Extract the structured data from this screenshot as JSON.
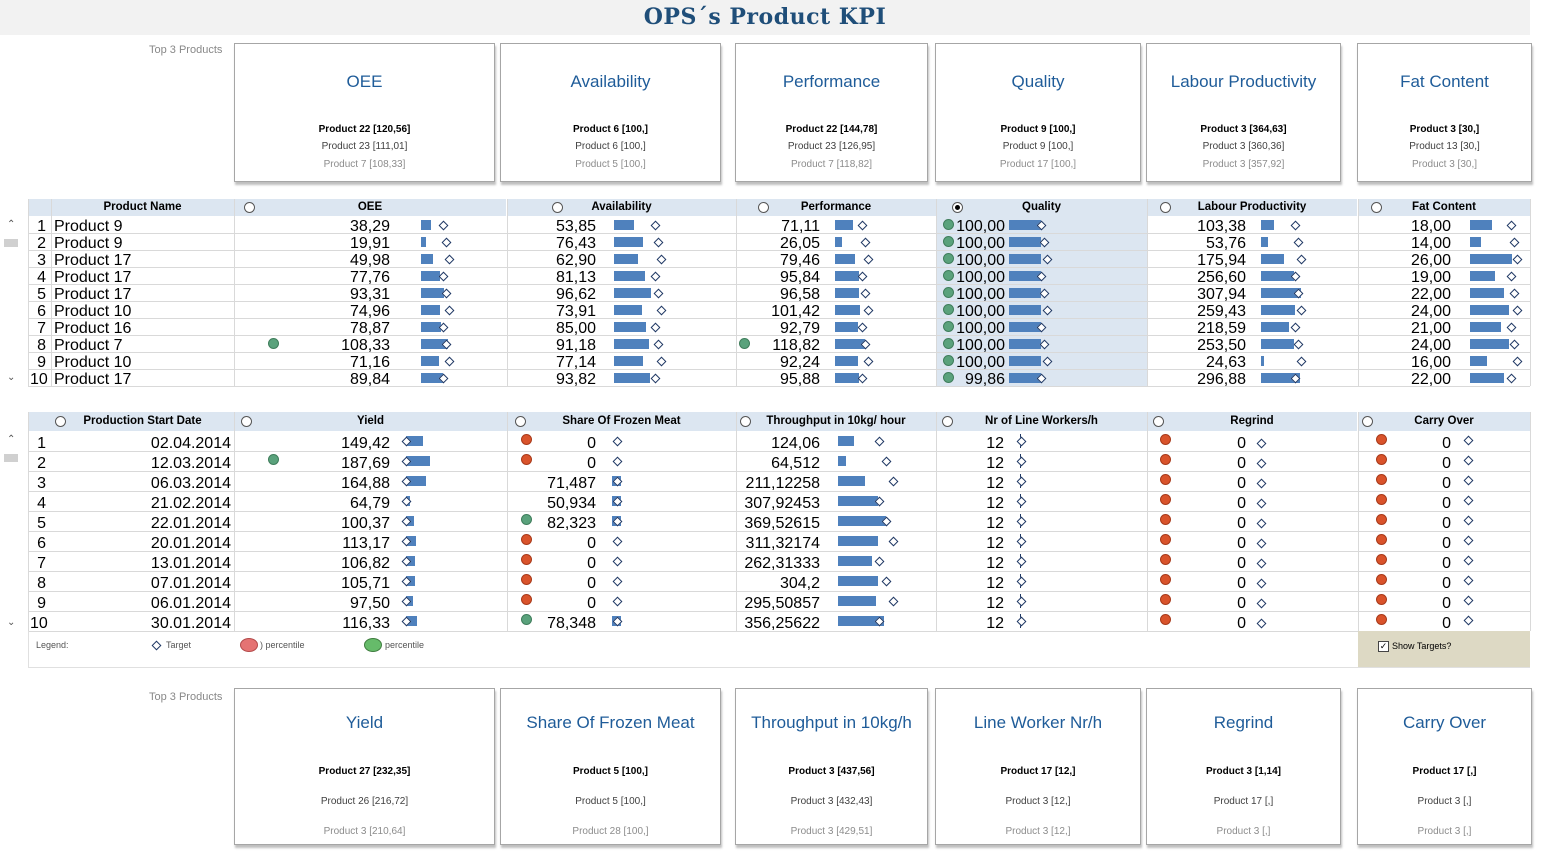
{
  "title": "OPS´s Product KPI",
  "top_label": "Top 3 Products",
  "top_cards": [
    {
      "title": "OEE",
      "lines": [
        "Product 22 [120,56]",
        "Product 23 [111,01]",
        "Product 7 [108,33]"
      ]
    },
    {
      "title": "Availability",
      "lines": [
        "Product 6 [100,]",
        "Product 6 [100,]",
        "Product 5 [100,]"
      ]
    },
    {
      "title": "Performance",
      "lines": [
        "Product 22 [144,78]",
        "Product 23 [126,95]",
        "Product 7 [118,82]"
      ]
    },
    {
      "title": "Quality",
      "lines": [
        "Product 9 [100,]",
        "Product 9 [100,]",
        "Product 17 [100,]"
      ]
    },
    {
      "title": "Labour Productivity",
      "lines": [
        "Product 3 [364,63]",
        "Product 3 [360,36]",
        "Product 3 [357,92]"
      ]
    },
    {
      "title": "Fat Content",
      "lines": [
        "Product 3 [30,]",
        "Product 13 [30,]",
        "Product 3 [30,]"
      ]
    }
  ],
  "table1": {
    "headers": [
      "Product Name",
      "OEE",
      "Availability",
      "Performance",
      "Quality",
      "Labour Productivity",
      "Fat Content"
    ],
    "rows": [
      {
        "n": "1",
        "name": "Product 9",
        "oee": "38,29",
        "av": "53,85",
        "perf": "71,11",
        "q": "100,00",
        "lp": "103,38",
        "fat": "18,00"
      },
      {
        "n": "2",
        "name": "Product 9",
        "oee": "19,91",
        "av": "76,43",
        "perf": "26,05",
        "q": "100,00",
        "lp": "53,76",
        "fat": "14,00"
      },
      {
        "n": "3",
        "name": "Product 17",
        "oee": "49,98",
        "av": "62,90",
        "perf": "79,46",
        "q": "100,00",
        "lp": "175,94",
        "fat": "26,00"
      },
      {
        "n": "4",
        "name": "Product 17",
        "oee": "77,76",
        "av": "81,13",
        "perf": "95,84",
        "q": "100,00",
        "lp": "256,60",
        "fat": "19,00"
      },
      {
        "n": "5",
        "name": "Product 17",
        "oee": "93,31",
        "av": "96,62",
        "perf": "96,58",
        "q": "100,00",
        "lp": "307,94",
        "fat": "22,00"
      },
      {
        "n": "6",
        "name": "Product 10",
        "oee": "74,96",
        "av": "73,91",
        "perf": "101,42",
        "q": "100,00",
        "lp": "259,43",
        "fat": "24,00"
      },
      {
        "n": "7",
        "name": "Product 16",
        "oee": "78,87",
        "av": "85,00",
        "perf": "92,79",
        "q": "100,00",
        "lp": "218,59",
        "fat": "21,00"
      },
      {
        "n": "8",
        "name": "Product 7",
        "oee": "108,33",
        "av": "91,18",
        "perf": "118,82",
        "q": "100,00",
        "lp": "253,50",
        "fat": "24,00"
      },
      {
        "n": "9",
        "name": "Product 10",
        "oee": "71,16",
        "av": "77,14",
        "perf": "92,24",
        "q": "100,00",
        "lp": "24,63",
        "fat": "16,00"
      },
      {
        "n": "10",
        "name": "Product 17",
        "oee": "89,84",
        "av": "93,82",
        "perf": "95,88",
        "q": "99,86",
        "lp": "296,88",
        "fat": "22,00"
      }
    ]
  },
  "table2": {
    "headers": [
      "Production Start Date",
      "Yield",
      "Share Of Frozen Meat",
      "Throughput in 10kg/ hour",
      "Nr of Line Workers/h",
      "Regrind",
      "Carry Over"
    ],
    "rows": [
      {
        "n": "1",
        "date": "02.04.2014",
        "yield": "149,42",
        "frozen": "0",
        "thr": "124,06",
        "lw": "12",
        "reg": "0",
        "co": "0"
      },
      {
        "n": "2",
        "date": "12.03.2014",
        "yield": "187,69",
        "frozen": "0",
        "thr": "64,512",
        "lw": "12",
        "reg": "0",
        "co": "0"
      },
      {
        "n": "3",
        "date": "06.03.2014",
        "yield": "164,88",
        "frozen": "71,487",
        "thr": "211,12258",
        "lw": "12",
        "reg": "0",
        "co": "0"
      },
      {
        "n": "4",
        "date": "21.02.2014",
        "yield": "64,79",
        "frozen": "50,934",
        "thr": "307,92453",
        "lw": "12",
        "reg": "0",
        "co": "0"
      },
      {
        "n": "5",
        "date": "22.01.2014",
        "yield": "100,37",
        "frozen": "82,323",
        "thr": "369,52615",
        "lw": "12",
        "reg": "0",
        "co": "0"
      },
      {
        "n": "6",
        "date": "20.01.2014",
        "yield": "113,17",
        "frozen": "0",
        "thr": "311,32174",
        "lw": "12",
        "reg": "0",
        "co": "0"
      },
      {
        "n": "7",
        "date": "13.01.2014",
        "yield": "106,82",
        "frozen": "0",
        "thr": "262,31333",
        "lw": "12",
        "reg": "0",
        "co": "0"
      },
      {
        "n": "8",
        "date": "07.01.2014",
        "yield": "105,71",
        "frozen": "0",
        "thr": "304,2",
        "lw": "12",
        "reg": "0",
        "co": "0"
      },
      {
        "n": "9",
        "date": "06.01.2014",
        "yield": "97,50",
        "frozen": "0",
        "thr": "295,50857",
        "lw": "12",
        "reg": "0",
        "co": "0"
      },
      {
        "n": "10",
        "date": "30.01.2014",
        "yield": "116,33",
        "frozen": "78,348",
        "thr": "356,25622",
        "lw": "12",
        "reg": "0",
        "co": "0"
      }
    ]
  },
  "legend": {
    "label": "Legend:",
    "target": "Target",
    "low": ") percentile",
    "high": "percentile"
  },
  "show_targets": "Show Targets?",
  "bottom_cards": [
    {
      "title": "Yield",
      "lines": [
        "Product 27 [232,35]",
        "Product 26 [216,72]",
        "Product 3 [210,64]"
      ]
    },
    {
      "title": "Share Of Frozen Meat",
      "lines": [
        "Product 5 [100,]",
        "Product 5 [100,]",
        "Product 28 [100,]"
      ]
    },
    {
      "title": "Throughput in 10kg/h",
      "lines": [
        "Product 3 [437,56]",
        "Product 3 [432,43]",
        "Product 3 [429,51]"
      ]
    },
    {
      "title": "Line Worker Nr/h",
      "lines": [
        "Product 17 [12,]",
        "Product 3 [12,]",
        "Product 3 [12,]"
      ]
    },
    {
      "title": "Regrind",
      "lines": [
        "Product 3 [1,14]",
        "Product 17 [,]",
        "Product 3 [,]"
      ]
    },
    {
      "title": "Carry Over",
      "lines": [
        "Product 17 [,]",
        "Product 3 [,]",
        "Product 3 [,]"
      ]
    }
  ],
  "colors": {
    "header_bg": "#dce6f1",
    "bar": "#4f81bd",
    "title": "#1f4e79",
    "green": "#5aa27c",
    "red": "#d9532b"
  }
}
